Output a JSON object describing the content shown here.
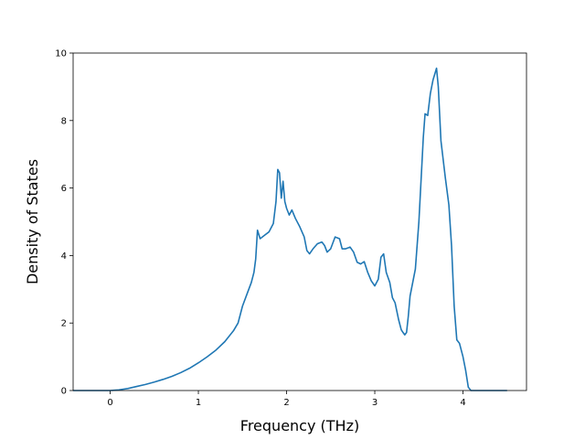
{
  "chart_data": {
    "type": "line",
    "title": "",
    "xlabel": "Frequency (THz)",
    "ylabel": "Density of States",
    "xlim": [
      -0.42,
      4.72
    ],
    "ylim": [
      0,
      10
    ],
    "x_ticks": [
      "0",
      "1",
      "2",
      "3",
      "4"
    ],
    "y_ticks": [
      "0",
      "2",
      "4",
      "6",
      "8",
      "10"
    ],
    "grid": false,
    "legend": "none",
    "line_color": "#1f77b4",
    "series": [
      {
        "x": [
          -0.42,
          -0.3,
          -0.2,
          -0.1,
          0.0,
          0.1,
          0.2,
          0.3,
          0.4,
          0.5,
          0.6,
          0.7,
          0.8,
          0.9,
          1.0,
          1.1,
          1.2,
          1.3,
          1.4,
          1.45,
          1.5,
          1.55,
          1.6,
          1.63,
          1.65,
          1.67,
          1.7,
          1.75,
          1.8,
          1.85,
          1.88,
          1.9,
          1.92,
          1.94,
          1.96,
          1.98,
          2.0,
          2.03,
          2.06,
          2.1,
          2.15,
          2.2,
          2.23,
          2.26,
          2.3,
          2.35,
          2.4,
          2.43,
          2.46,
          2.5,
          2.55,
          2.6,
          2.63,
          2.67,
          2.72,
          2.76,
          2.8,
          2.84,
          2.88,
          2.92,
          2.96,
          3.0,
          3.04,
          3.07,
          3.1,
          3.13,
          3.17,
          3.2,
          3.23,
          3.27,
          3.3,
          3.32,
          3.34,
          3.36,
          3.38,
          3.4,
          3.43,
          3.46,
          3.5,
          3.53,
          3.55,
          3.57,
          3.6,
          3.63,
          3.66,
          3.7,
          3.72,
          3.75,
          3.8,
          3.84,
          3.87,
          3.9,
          3.93,
          3.96,
          4.0,
          4.03,
          4.06,
          4.09,
          4.1,
          4.2,
          4.3,
          4.4,
          4.5
        ],
        "y": [
          0,
          0,
          0,
          0,
          0,
          0.02,
          0.06,
          0.12,
          0.18,
          0.25,
          0.33,
          0.42,
          0.53,
          0.66,
          0.82,
          1.0,
          1.2,
          1.45,
          1.78,
          2.0,
          2.5,
          2.85,
          3.2,
          3.5,
          3.9,
          4.75,
          4.5,
          4.6,
          4.7,
          4.95,
          5.6,
          6.55,
          6.45,
          5.7,
          6.2,
          5.6,
          5.4,
          5.2,
          5.35,
          5.1,
          4.85,
          4.55,
          4.15,
          4.05,
          4.2,
          4.35,
          4.4,
          4.3,
          4.1,
          4.2,
          4.55,
          4.5,
          4.2,
          4.2,
          4.25,
          4.1,
          3.8,
          3.75,
          3.82,
          3.5,
          3.25,
          3.1,
          3.3,
          3.95,
          4.05,
          3.5,
          3.2,
          2.75,
          2.6,
          2.1,
          1.8,
          1.72,
          1.65,
          1.72,
          2.2,
          2.8,
          3.2,
          3.6,
          5.0,
          6.5,
          7.5,
          8.2,
          8.15,
          8.8,
          9.2,
          9.55,
          9.0,
          7.4,
          6.3,
          5.5,
          4.3,
          2.5,
          1.5,
          1.4,
          1.0,
          0.6,
          0.1,
          0,
          0,
          0,
          0,
          0,
          0
        ]
      }
    ]
  }
}
